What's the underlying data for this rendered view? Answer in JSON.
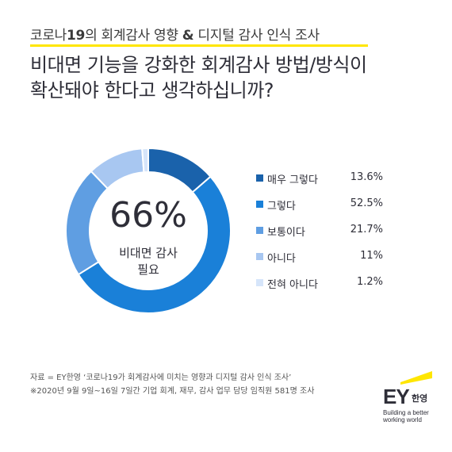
{
  "header": {
    "subtitle_pre": "코로나",
    "subtitle_num": "19",
    "subtitle_mid": "의 회계감사 영향 ",
    "subtitle_amp": "&",
    "subtitle_post": " 디지털 감사 인식 조사",
    "accent_color": "#ffe600"
  },
  "question": {
    "line1": "비대면 기능을 강화한 회계감사 방법/방식이",
    "line2": "확산돼야 한다고 생각하십니까?"
  },
  "center": {
    "value": "66%",
    "label_line1": "비대면 감사",
    "label_line2": "필요"
  },
  "chart_data": {
    "type": "pie",
    "variant": "donut",
    "series": [
      {
        "name": "매우 그렇다",
        "value": 13.6,
        "display": "13.6%",
        "color": "#1a62ab"
      },
      {
        "name": "그렇다",
        "value": 52.5,
        "display": "52.5%",
        "color": "#1a80d8"
      },
      {
        "name": "보통이다",
        "value": 21.7,
        "display": "21.7%",
        "color": "#5f9ee2"
      },
      {
        "name": "아니다",
        "value": 11,
        "display": "11%",
        "color": "#a8c7f1"
      },
      {
        "name": "전혀 아니다",
        "value": 1.2,
        "display": "1.2%",
        "color": "#d6e5fa"
      }
    ],
    "legend_position": "right",
    "unit": "%"
  },
  "footnote": {
    "line1": "자료 = EY한영 ‘코로나19가 회계감사에 미치는 영향과 디지털 감사 인식 조사’",
    "line2": "※2020년 9월 9일~16일 7일간 기업 회계, 재무, 감사 업무 담당 임직원 581명 조사"
  },
  "logo": {
    "mark": "EY",
    "korean": "한영",
    "tagline_line1": "Building a better",
    "tagline_line2": "working world",
    "bar_color": "#ffe600"
  }
}
